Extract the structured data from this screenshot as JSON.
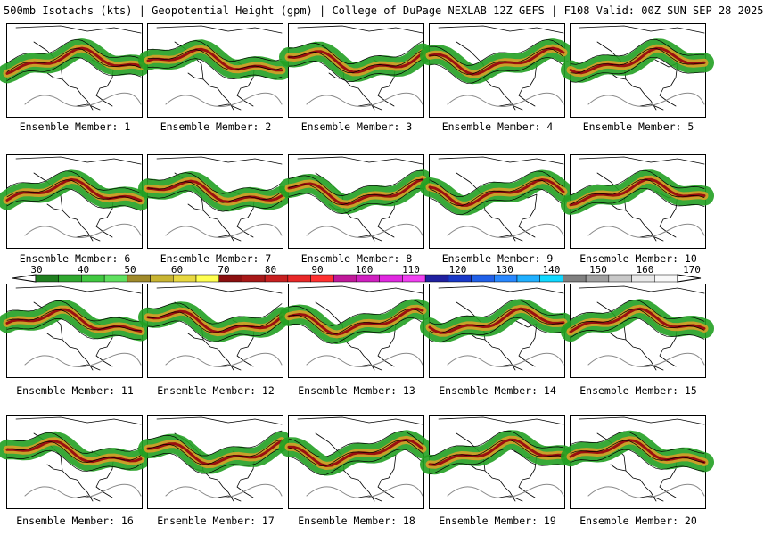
{
  "header": {
    "title": "500mb Isotachs (kts) | Geopotential Height (gpm) | College of DuPage NEXLAB",
    "run_info": "12Z GEFS | F108 Valid: 00Z SUN SEP 28 2025"
  },
  "panels": [
    {
      "member": 1,
      "label": "Ensemble Member: 1"
    },
    {
      "member": 2,
      "label": "Ensemble Member: 2"
    },
    {
      "member": 3,
      "label": "Ensemble Member: 3"
    },
    {
      "member": 4,
      "label": "Ensemble Member: 4"
    },
    {
      "member": 5,
      "label": "Ensemble Member: 5"
    },
    {
      "member": 6,
      "label": "Ensemble Member: 6"
    },
    {
      "member": 7,
      "label": "Ensemble Member: 7"
    },
    {
      "member": 8,
      "label": "Ensemble Member: 8"
    },
    {
      "member": 9,
      "label": "Ensemble Member: 9"
    },
    {
      "member": 10,
      "label": "Ensemble Member: 10"
    },
    {
      "member": 11,
      "label": "Ensemble Member: 11"
    },
    {
      "member": 12,
      "label": "Ensemble Member: 12"
    },
    {
      "member": 13,
      "label": "Ensemble Member: 13"
    },
    {
      "member": 14,
      "label": "Ensemble Member: 14"
    },
    {
      "member": 15,
      "label": "Ensemble Member: 15"
    },
    {
      "member": 16,
      "label": "Ensemble Member: 16"
    },
    {
      "member": 17,
      "label": "Ensemble Member: 17"
    },
    {
      "member": 18,
      "label": "Ensemble Member: 18"
    },
    {
      "member": 19,
      "label": "Ensemble Member: 19"
    },
    {
      "member": 20,
      "label": "Ensemble Member: 20"
    }
  ],
  "colorbar": {
    "units": "kts",
    "ticks": [
      "30",
      "40",
      "50",
      "60",
      "70",
      "80",
      "90",
      "100",
      "110",
      "120",
      "130",
      "140",
      "150",
      "160",
      "170"
    ],
    "colors": [
      "#1f7f1f",
      "#2fa82f",
      "#40c840",
      "#5fe05f",
      "#a08a2a",
      "#c8b432",
      "#e8d840",
      "#ffff50",
      "#8b1010",
      "#a81818",
      "#c82020",
      "#e82828",
      "#ff3030",
      "#c0189a",
      "#d020c0",
      "#e028e0",
      "#f040f0",
      "#2020a0",
      "#1838c8",
      "#2060e8",
      "#2888ff",
      "#20b0ff",
      "#10d8ff",
      "#808080",
      "#a0a0a0",
      "#c8c8c8",
      "#e8e8e8",
      "#f8f8f8"
    ]
  },
  "legend_colors": {
    "jet_low": "#22a022",
    "jet_mid": "#c8a028",
    "jet_high": "#9a1010",
    "outline": "#000000"
  }
}
